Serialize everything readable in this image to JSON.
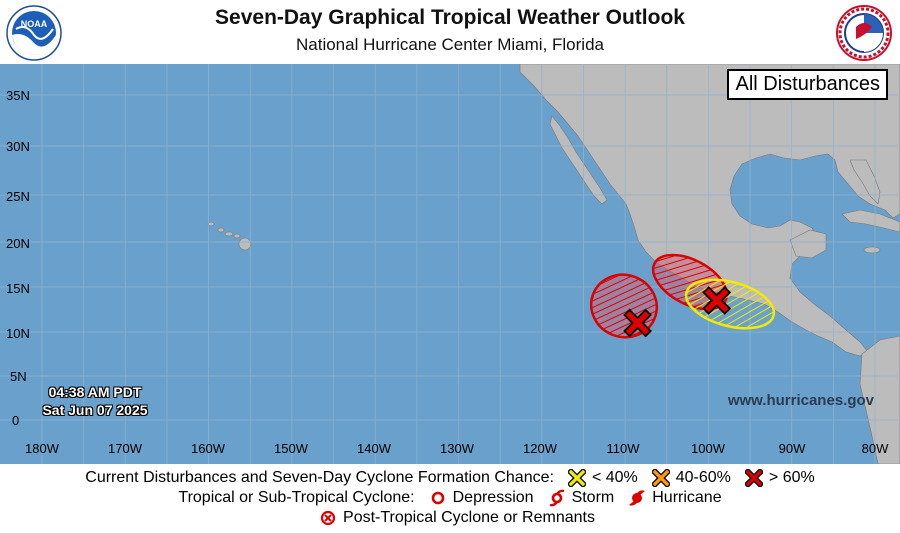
{
  "header": {
    "title": "Seven-Day Graphical Tropical Weather Outlook",
    "subtitle": "National Hurricane Center  Miami, Florida"
  },
  "panel": {
    "label": "All Disturbances"
  },
  "timestamp": {
    "time": "04:38 AM PDT",
    "date": "Sat Jun 07 2025"
  },
  "website": "www.hurricanes.gov",
  "latitude_labels": [
    "35N",
    "30N",
    "25N",
    "20N",
    "15N",
    "10N",
    "5N",
    "0"
  ],
  "longitude_labels": [
    "180W",
    "170W",
    "160W",
    "150W",
    "140W",
    "130W",
    "120W",
    "110W",
    "100W",
    "90W",
    "80W"
  ],
  "disturbances": [
    {
      "category": "> 60%",
      "color": "#dd0000",
      "center": {
        "lon": -108.5,
        "lat": 11.0
      }
    },
    {
      "category": "> 60%",
      "color": "#dd0000",
      "center": {
        "lon": -99.0,
        "lat": 13.5
      }
    }
  ],
  "areas": [
    {
      "category": "> 60%",
      "color": "#dd0000"
    },
    {
      "category": "> 60%",
      "color": "#dd0000"
    },
    {
      "category": "< 40%",
      "color": "#f2ea00"
    }
  ],
  "legend": {
    "row1_label": "Current Disturbances and Seven-Day Cyclone Formation Chance:",
    "low": "< 40%",
    "medium": "40-60%",
    "high": "> 60%",
    "row2_label": "Tropical or Sub-Tropical Cyclone:",
    "depression": "Depression",
    "storm": "Storm",
    "hurricane": "Hurricane",
    "post_tropical": "Post-Tropical Cyclone or Remnants"
  },
  "colors": {
    "ocean": "#6aa1cc",
    "land": "#bcbcbc",
    "low": "#f2ea00",
    "medium": "#ff9a00",
    "high": "#dd0000"
  },
  "icons": [
    "noaa-logo",
    "nws-logo",
    "yellow-x-icon",
    "orange-x-icon",
    "red-x-icon",
    "depression-icon",
    "storm-icon",
    "hurricane-icon",
    "post-tropical-icon"
  ]
}
